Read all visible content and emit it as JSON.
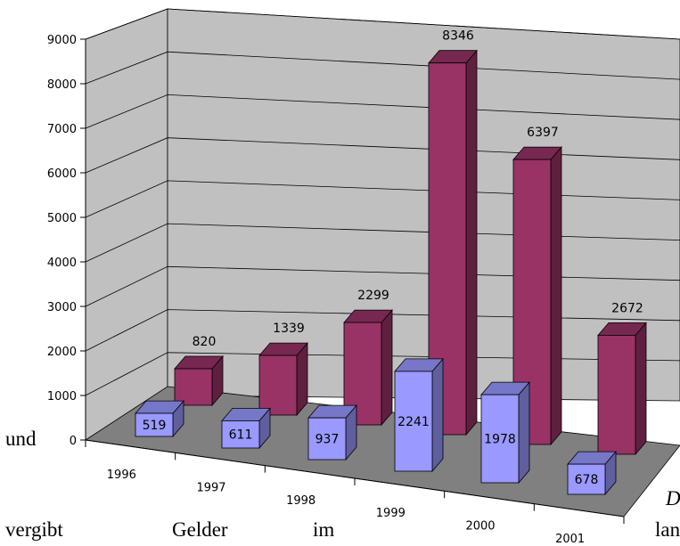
{
  "chart_data": {
    "type": "bar",
    "categories": [
      "1996",
      "1997",
      "1998",
      "1999",
      "2000",
      "2001"
    ],
    "series": [
      {
        "values": [
          519,
          611,
          937,
          2241,
          1978,
          678
        ],
        "color": "#9999ff"
      },
      {
        "values": [
          820,
          1339,
          2299,
          8346,
          6397,
          2672
        ],
        "color": "#993366"
      }
    ],
    "ylim": [
      0,
      9000
    ],
    "yticks": [
      "0",
      "1000",
      "2000",
      "3000",
      "4000",
      "5000",
      "6000",
      "7000",
      "8000",
      "9000"
    ],
    "grid": true,
    "legend": "none",
    "three_d": true
  },
  "background_text": {
    "und": "und",
    "vergibt": "vergibt",
    "gelder": "Gelder",
    "im": "im",
    "lan": "lan",
    "italic_d": "D"
  }
}
